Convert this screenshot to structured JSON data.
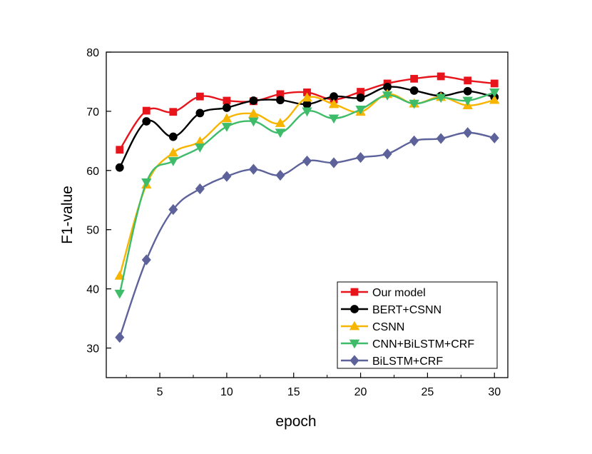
{
  "chart_data": {
    "type": "line",
    "xlabel": "epoch",
    "ylabel": "F1-value",
    "xlim": [
      1,
      31
    ],
    "ylim": [
      25,
      80
    ],
    "xticks": [
      5,
      10,
      15,
      20,
      25,
      30
    ],
    "yticks": [
      30,
      40,
      50,
      60,
      70,
      80
    ],
    "grid": false,
    "legend_position": "bottom-right",
    "x": [
      2,
      4,
      6,
      8,
      10,
      12,
      14,
      16,
      18,
      20,
      22,
      24,
      26,
      28,
      30
    ],
    "series": [
      {
        "name": "Our model",
        "color": "#e8141c",
        "marker": "square",
        "values": [
          63.5,
          70.1,
          69.9,
          72.5,
          71.8,
          71.7,
          72.9,
          73.2,
          72.0,
          73.3,
          74.7,
          75.5,
          75.9,
          75.2,
          74.7
        ]
      },
      {
        "name": "BERT+CSNN",
        "color": "#000000",
        "marker": "circle",
        "values": [
          60.5,
          68.3,
          65.7,
          69.7,
          70.6,
          71.8,
          71.9,
          71.2,
          72.5,
          72.3,
          74.1,
          73.5,
          72.6,
          73.4,
          72.4
        ]
      },
      {
        "name": "CSNN",
        "color": "#f7b500",
        "marker": "triangle-up",
        "values": [
          42.2,
          57.6,
          63.0,
          64.9,
          68.8,
          69.6,
          68.0,
          72.3,
          71.2,
          69.9,
          72.9,
          71.3,
          72.4,
          71.0,
          71.9
        ]
      },
      {
        "name": "CNN+BiLSTM+CRF",
        "color": "#3ebc6a",
        "marker": "triangle-down",
        "values": [
          39.2,
          58.0,
          61.6,
          63.9,
          67.4,
          68.3,
          66.4,
          70.0,
          68.8,
          70.3,
          72.7,
          71.3,
          72.3,
          71.8,
          73.2
        ]
      },
      {
        "name": "BiLSTM+CRF",
        "color": "#5d639a",
        "marker": "diamond",
        "values": [
          31.8,
          44.9,
          53.4,
          56.9,
          59.0,
          60.2,
          59.2,
          61.6,
          61.3,
          62.2,
          62.8,
          65.0,
          65.4,
          66.4,
          65.5
        ]
      }
    ]
  }
}
